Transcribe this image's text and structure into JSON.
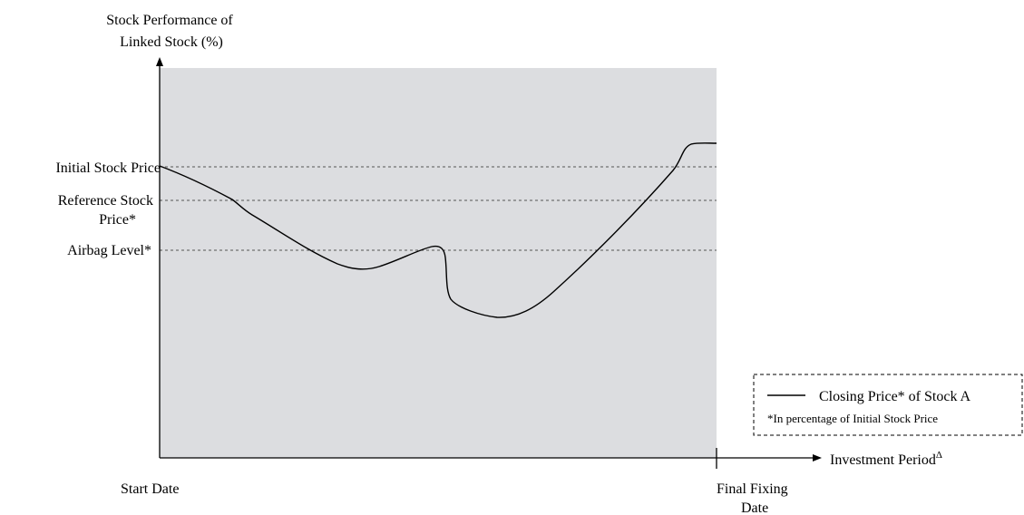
{
  "chart_data": {
    "type": "line",
    "ylabel": [
      "Stock Performance of",
      "Linked Stock (%)"
    ],
    "xlabel": "Investment Period",
    "xlabel_superscript": "Δ",
    "x_ticks": {
      "start": "Start Date",
      "end": [
        "Final Fixing",
        "Date"
      ]
    },
    "reference_lines": [
      {
        "id": "initial",
        "label": [
          "Initial Stock Price"
        ]
      },
      {
        "id": "reference",
        "label": [
          "Reference Stock",
          "Price*"
        ]
      },
      {
        "id": "airbag",
        "label": [
          "Airbag Level*"
        ]
      }
    ],
    "series": [
      {
        "name": "Closing Price* of Stock A"
      }
    ],
    "legend": {
      "placement": "right",
      "entry": "Closing Price* of Stock A",
      "note": "*In percentage of Initial Stock Price"
    },
    "plot_background": "#dcdde0",
    "line_color": "#000000",
    "reference_line_color": "#555555",
    "grid": false
  }
}
